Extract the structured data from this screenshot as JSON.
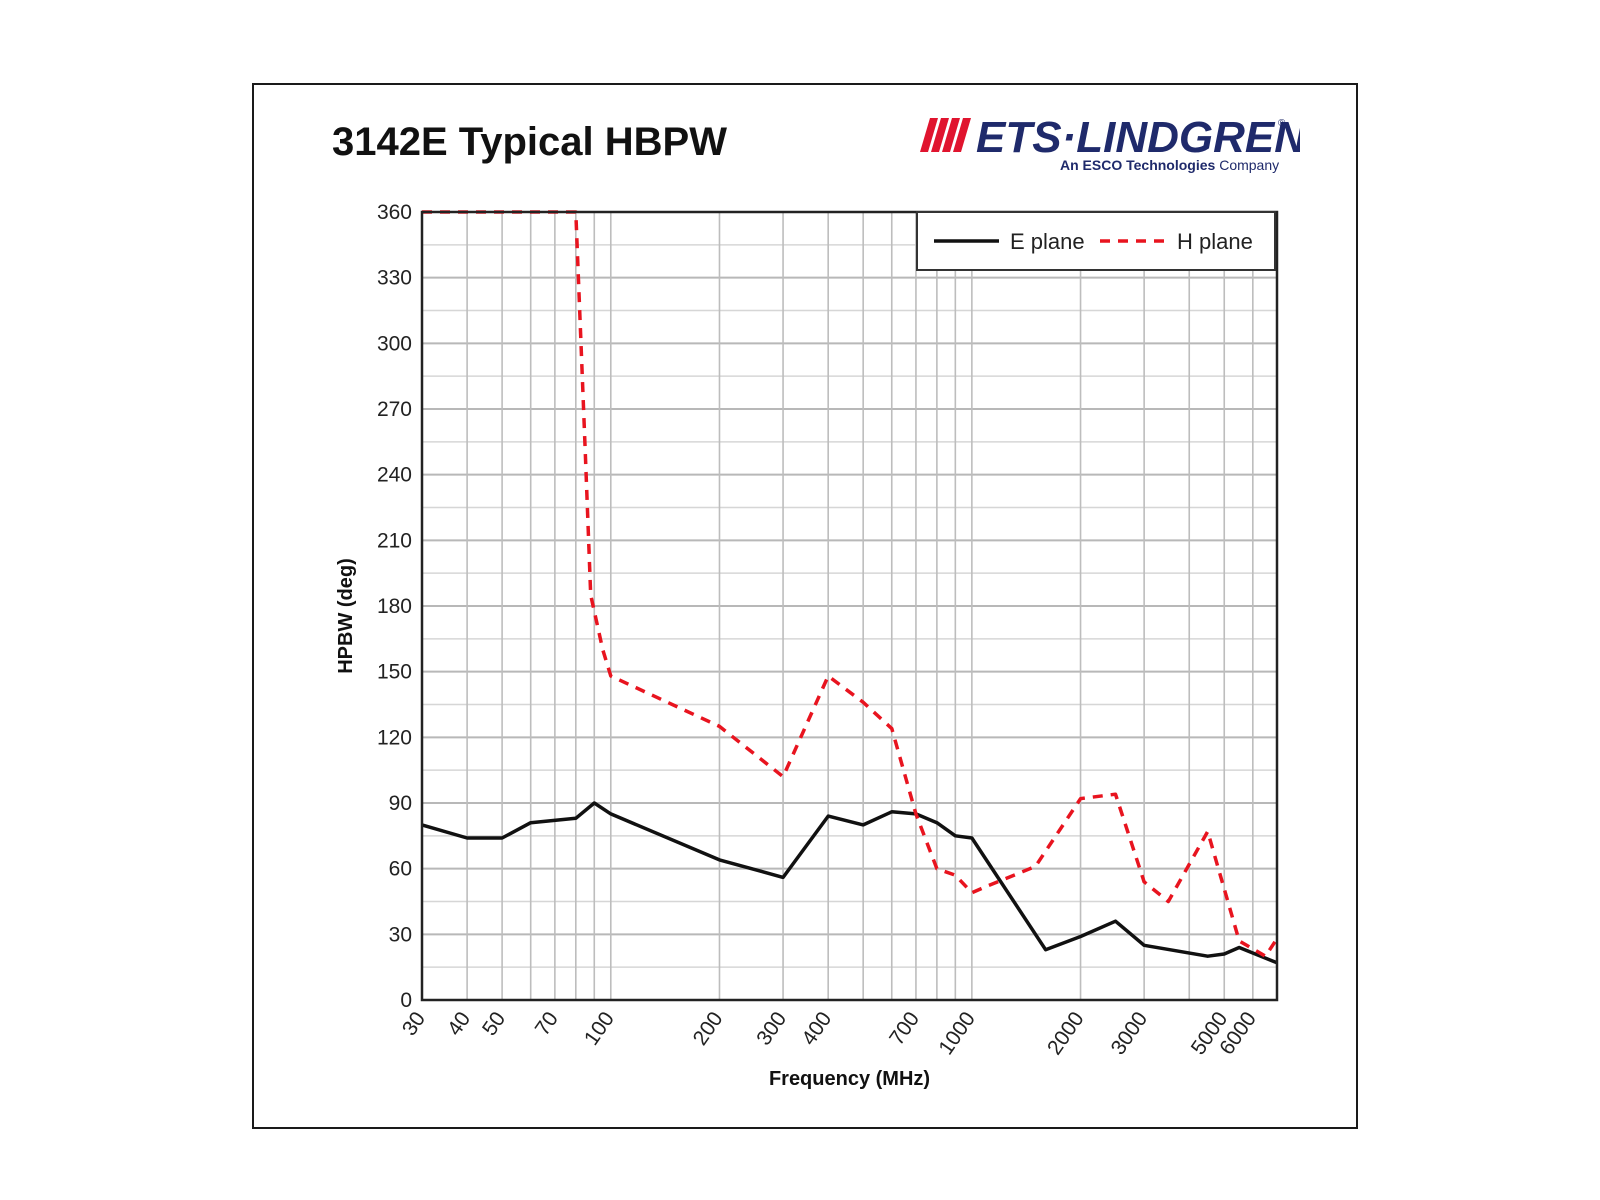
{
  "title": "3142E Typical HBPW",
  "logo": {
    "brand": "ETS·LINDGREN",
    "registered": "®",
    "tagline_bold": "An ESCO Technologies",
    "tagline_rest": " Company",
    "color": "#e0142e",
    "text_color": "#1f2a6b"
  },
  "chart_data": {
    "type": "line",
    "xlabel": "Frequency (MHz)",
    "ylabel": "HPBW (deg)",
    "xscale": "log",
    "xlim": [
      30,
      7000
    ],
    "ylim": [
      0,
      360
    ],
    "yticks": [
      0,
      30,
      60,
      90,
      120,
      150,
      180,
      210,
      240,
      270,
      300,
      330,
      360
    ],
    "xtick_labels": [
      "30",
      "40",
      "50",
      "70",
      "100",
      "200",
      "300",
      "400",
      "700",
      "1000",
      "2000",
      "3000",
      "5000",
      "6000"
    ],
    "xtick_values": [
      30,
      40,
      50,
      70,
      100,
      200,
      300,
      400,
      700,
      1000,
      2000,
      3000,
      5000,
      6000
    ],
    "grid": true,
    "legend_position": "top-right",
    "series": [
      {
        "name": "E plane",
        "color": "#111111",
        "style": "solid",
        "points": [
          [
            30,
            80
          ],
          [
            40,
            74
          ],
          [
            50,
            74
          ],
          [
            60,
            81
          ],
          [
            80,
            83
          ],
          [
            90,
            90
          ],
          [
            100,
            85
          ],
          [
            200,
            64
          ],
          [
            300,
            56
          ],
          [
            400,
            84
          ],
          [
            500,
            80
          ],
          [
            600,
            86
          ],
          [
            700,
            85
          ],
          [
            800,
            81
          ],
          [
            900,
            75
          ],
          [
            1000,
            74
          ],
          [
            1600,
            23
          ],
          [
            2000,
            29
          ],
          [
            2500,
            36
          ],
          [
            3000,
            25
          ],
          [
            4500,
            20
          ],
          [
            5000,
            21
          ],
          [
            5500,
            24
          ],
          [
            7000,
            17
          ]
        ]
      },
      {
        "name": "H plane",
        "color": "#e8141f",
        "style": "dashed",
        "points": [
          [
            30,
            360
          ],
          [
            80,
            360
          ],
          [
            85,
            250
          ],
          [
            88,
            185
          ],
          [
            95,
            160
          ],
          [
            100,
            148
          ],
          [
            200,
            125
          ],
          [
            300,
            102
          ],
          [
            400,
            148
          ],
          [
            500,
            136
          ],
          [
            600,
            124
          ],
          [
            700,
            85
          ],
          [
            800,
            60
          ],
          [
            900,
            57
          ],
          [
            1000,
            49
          ],
          [
            1100,
            52
          ],
          [
            1500,
            61
          ],
          [
            2000,
            92
          ],
          [
            2500,
            94
          ],
          [
            3000,
            54
          ],
          [
            3500,
            45
          ],
          [
            4500,
            77
          ],
          [
            5500,
            27
          ],
          [
            6500,
            20
          ],
          [
            7000,
            28
          ]
        ]
      }
    ]
  }
}
